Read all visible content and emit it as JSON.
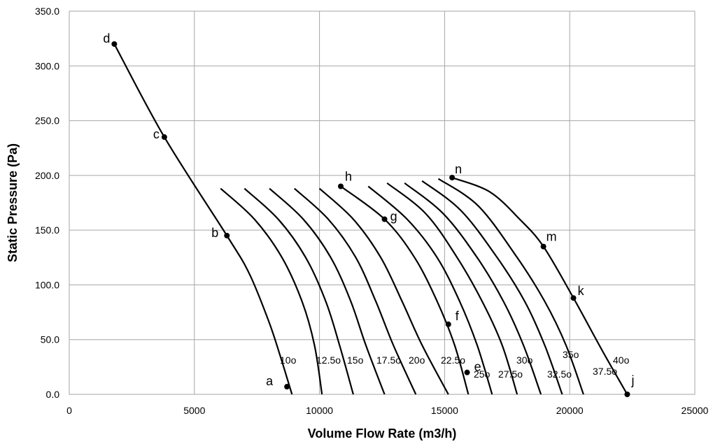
{
  "chart_data": {
    "type": "line",
    "xlabel": "Volume Flow Rate (m3/h)",
    "ylabel": "Static Pressure (Pa)",
    "xlim": [
      0,
      25000
    ],
    "ylim": [
      0,
      350
    ],
    "xticks": [
      0,
      5000,
      10000,
      15000,
      20000,
      25000
    ],
    "xtick_labels": [
      "0",
      "5000",
      "10000",
      "15000",
      "20000",
      "25000"
    ],
    "yticks": [
      0,
      50,
      100,
      150,
      200,
      250,
      300,
      350
    ],
    "ytick_labels": [
      "0.0",
      "50.0",
      "100.0",
      "150.0",
      "200.0",
      "250.0",
      "300.0",
      "350.0"
    ],
    "grid": true,
    "line_color": "#000000",
    "grid_color": "#a6a6a6",
    "system_curve": [
      [
        1800,
        320
      ],
      [
        3800,
        235
      ],
      [
        6300,
        145
      ],
      [
        7200,
        110
      ],
      [
        8000,
        65
      ],
      [
        8500,
        30
      ],
      [
        8900,
        0
      ]
    ],
    "series": [
      {
        "angle": "10o",
        "values": [
          [
            1800,
            320
          ],
          [
            3800,
            235
          ],
          [
            6300,
            145
          ],
          [
            7200,
            110
          ],
          [
            8000,
            65
          ],
          [
            8500,
            30
          ],
          [
            8900,
            0
          ]
        ]
      },
      {
        "angle": "12.5o",
        "values": [
          [
            6050,
            188
          ],
          [
            7400,
            160
          ],
          [
            8500,
            125
          ],
          [
            9300,
            85
          ],
          [
            9800,
            45
          ],
          [
            10100,
            0
          ]
        ]
      },
      {
        "angle": "15o",
        "values": [
          [
            7000,
            188
          ],
          [
            8350,
            160
          ],
          [
            9450,
            125
          ],
          [
            10250,
            85
          ],
          [
            10800,
            45
          ],
          [
            11350,
            0
          ]
        ]
      },
      {
        "angle": "17.5o",
        "values": [
          [
            8000,
            188
          ],
          [
            9350,
            160
          ],
          [
            10450,
            125
          ],
          [
            11250,
            85
          ],
          [
            11850,
            45
          ],
          [
            12600,
            0
          ]
        ]
      },
      {
        "angle": "20o",
        "values": [
          [
            9000,
            188
          ],
          [
            10350,
            160
          ],
          [
            11450,
            125
          ],
          [
            12250,
            85
          ],
          [
            12950,
            45
          ],
          [
            13850,
            0
          ]
        ]
      },
      {
        "angle": "22.5o",
        "values": [
          [
            10000,
            188
          ],
          [
            11350,
            160
          ],
          [
            12450,
            125
          ],
          [
            13300,
            85
          ],
          [
            14100,
            45
          ],
          [
            15150,
            0
          ]
        ]
      },
      {
        "angle": "25o",
        "values": [
          [
            10850,
            190
          ],
          [
            12600,
            160
          ],
          [
            13800,
            125
          ],
          [
            14700,
            85
          ],
          [
            15400,
            45
          ],
          [
            15950,
            0
          ]
        ]
      },
      {
        "angle": "27.5o",
        "values": [
          [
            11950,
            190
          ],
          [
            13500,
            160
          ],
          [
            14700,
            125
          ],
          [
            15600,
            85
          ],
          [
            16300,
            45
          ],
          [
            16900,
            0
          ]
        ]
      },
      {
        "angle": "30o",
        "values": [
          [
            12700,
            193
          ],
          [
            14250,
            165
          ],
          [
            15500,
            125
          ],
          [
            16500,
            85
          ],
          [
            17300,
            45
          ],
          [
            17900,
            0
          ]
        ]
      },
      {
        "angle": "32.5o",
        "values": [
          [
            13400,
            193
          ],
          [
            14950,
            165
          ],
          [
            16300,
            125
          ],
          [
            17350,
            85
          ],
          [
            18150,
            45
          ],
          [
            18850,
            0
          ]
        ]
      },
      {
        "angle": "35o",
        "values": [
          [
            14100,
            195
          ],
          [
            15650,
            168
          ],
          [
            17100,
            125
          ],
          [
            18200,
            85
          ],
          [
            19000,
            45
          ],
          [
            19700,
            0
          ]
        ]
      },
      {
        "angle": "37.5o",
        "values": [
          [
            14750,
            197
          ],
          [
            16350,
            172
          ],
          [
            17900,
            125
          ],
          [
            19000,
            85
          ],
          [
            19850,
            45
          ],
          [
            20550,
            0
          ]
        ]
      },
      {
        "angle": "40o",
        "values": [
          [
            15300,
            198
          ],
          [
            16800,
            185
          ],
          [
            18000,
            160
          ],
          [
            18950,
            135
          ],
          [
            20150,
            88
          ],
          [
            21300,
            40
          ],
          [
            22300,
            0
          ]
        ]
      }
    ],
    "points": [
      {
        "label": "a",
        "x": 8700,
        "y": 7
      },
      {
        "label": "b",
        "x": 6300,
        "y": 145
      },
      {
        "label": "c",
        "x": 3800,
        "y": 235
      },
      {
        "label": "d",
        "x": 1800,
        "y": 320
      },
      {
        "label": "e",
        "x": 15900,
        "y": 20
      },
      {
        "label": "f",
        "x": 15150,
        "y": 64
      },
      {
        "label": "g",
        "x": 12600,
        "y": 160
      },
      {
        "label": "h",
        "x": 10850,
        "y": 190
      },
      {
        "label": "j",
        "x": 22300,
        "y": 0
      },
      {
        "label": "k",
        "x": 20150,
        "y": 88
      },
      {
        "label": "m",
        "x": 18950,
        "y": 135
      },
      {
        "label": "n",
        "x": 15300,
        "y": 198
      }
    ],
    "angle_labels": [
      "10o",
      "12.5o",
      "15o",
      "17.5o",
      "20o",
      "22.5o",
      "25o",
      "27.5o",
      "30o",
      "32.5o",
      "35o",
      "37.5o",
      "40o"
    ]
  }
}
